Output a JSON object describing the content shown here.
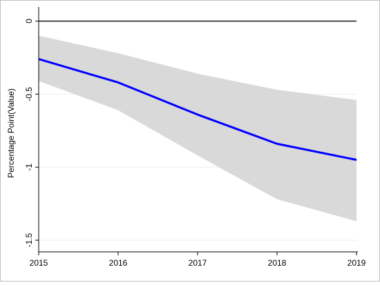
{
  "chart_data": {
    "type": "line",
    "title": "",
    "xlabel": "",
    "ylabel": "Percentage Point(Value)",
    "x": [
      2015,
      2016,
      2017,
      2018,
      2019
    ],
    "x_tick_labels": [
      "2015",
      "2016",
      "2017",
      "2018",
      "2019"
    ],
    "y_ticks": [
      0,
      -0.5,
      -1,
      -1.5
    ],
    "y_tick_labels": [
      "0",
      "-0.5",
      "-1",
      "-1.5"
    ],
    "ylim": [
      -1.5,
      0
    ],
    "xlim": [
      2015,
      2019
    ],
    "grid": "horizontal",
    "legend": "none",
    "reference_line": {
      "y": 0,
      "color": "#000000"
    },
    "series": [
      {
        "values": [
          -0.26,
          -0.42,
          -0.64,
          -0.84,
          -0.95
        ],
        "color": "#0000ff"
      }
    ],
    "confidence_band": {
      "lower": [
        -0.41,
        -0.61,
        -0.92,
        -1.22,
        -1.37
      ],
      "upper": [
        -0.1,
        -0.22,
        -0.36,
        -0.47,
        -0.54
      ],
      "color": "#d9d9d9"
    },
    "colors": {
      "axis": "#000000",
      "grid": "#eeeeee",
      "frame": "#c0c0c0"
    }
  }
}
